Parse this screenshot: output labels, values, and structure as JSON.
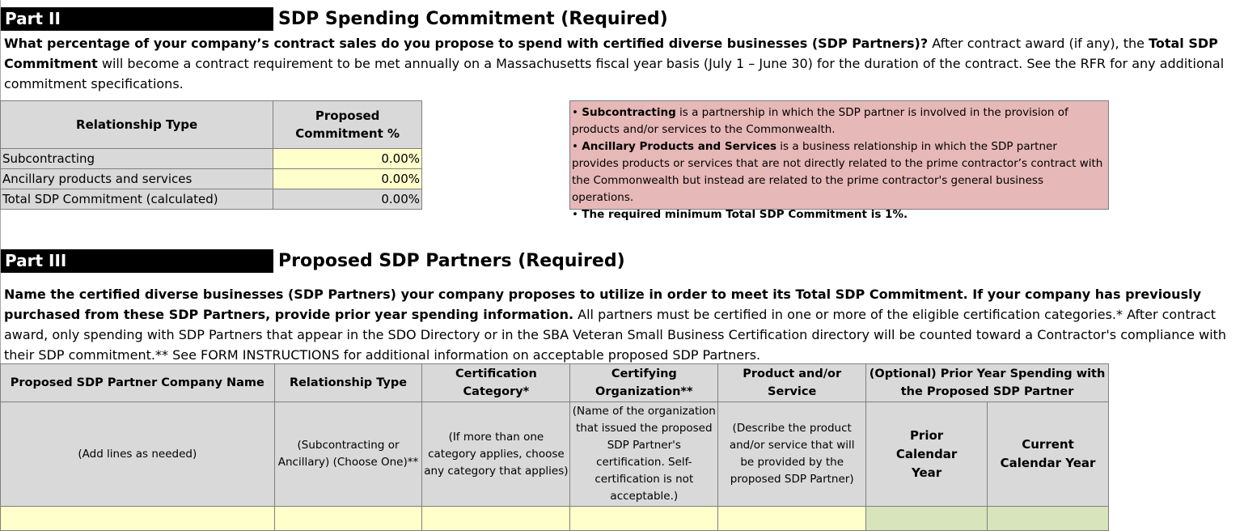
{
  "part2": {
    "label": "Part II",
    "title": "SDP Spending Commitment (Required)",
    "intro_bold": "What percentage of your company’s contract sales do you propose to spend with certified diverse businesses (SDP Partners)?",
    "intro_1": " After contract award (if any), the ",
    "intro_bold2": "Total SDP Commitment",
    "intro_2": " will become a contract requirement to be met annually on a Massachusetts fiscal year basis (July 1 – June 30) for the duration of the contract. See the RFR for any additional commitment specifications."
  },
  "commitment_table": {
    "header_type": "Relationship Type",
    "header_pct": "Proposed Commitment %",
    "rows": [
      {
        "label": "Subcontracting",
        "value": "0.00%"
      },
      {
        "label": "Ancillary products and services",
        "value": "0.00%"
      },
      {
        "label": "Total SDP Commitment (calculated)",
        "value": "0.00%"
      }
    ]
  },
  "info_box": {
    "b1_bold": "Subcontracting",
    "b1_text": " is a partnership in which the SDP partner is involved in the provision of products and/or services to the Commonwealth.",
    "b2_bold": "Ancillary Products and Services",
    "b2_text": " is a business relationship in which the SDP partner provides products or services that are not directly related to the prime contractor’s contract with the Commonwealth but instead are related to the prime contractor's general business operations.",
    "b3_bold": "The required minimum Total SDP Commitment is 1%."
  },
  "part3": {
    "label": "Part III",
    "title": "Proposed SDP Partners (Required)",
    "intro_bold": "Name the certified diverse businesses (SDP Partners) your company proposes to utilize in order to meet its Total SDP Commitment. If your company has previously purchased from these SDP Partners, provide prior year spending information.",
    "intro_text": " All partners must be certified in one or more of the eligible certification categories.* After contract award, only spending with SDP Partners that appear in the SDO Directory or in the SBA Veteran Small Business Certification directory will be counted toward a Contractor's compliance with their SDP commitment.** See FORM INSTRUCTIONS for additional information on acceptable proposed SDP Partners."
  },
  "partners_table": {
    "headers": {
      "company": "Proposed SDP Partner Company Name",
      "relationship": "Relationship Type",
      "category": "Certification Category*",
      "organization": "Certifying Organization**",
      "product": "Product and/or Service",
      "optional": "(Optional) Prior Year Spending with the Proposed SDP Partner"
    },
    "sub": {
      "company": "(Add lines as needed)",
      "relationship": "(Subcontracting or Ancillary) (Choose One)**",
      "category": "(If more than one category applies, choose any category that applies)",
      "organization": "(Name of the organization that issued the proposed SDP Partner's certification. Self-certification is not acceptable.)",
      "product": "(Describe the product and/or service that will be provided by the proposed SDP Partner)",
      "prior": "Prior Calendar Year",
      "current": "Current Calendar Year"
    }
  }
}
